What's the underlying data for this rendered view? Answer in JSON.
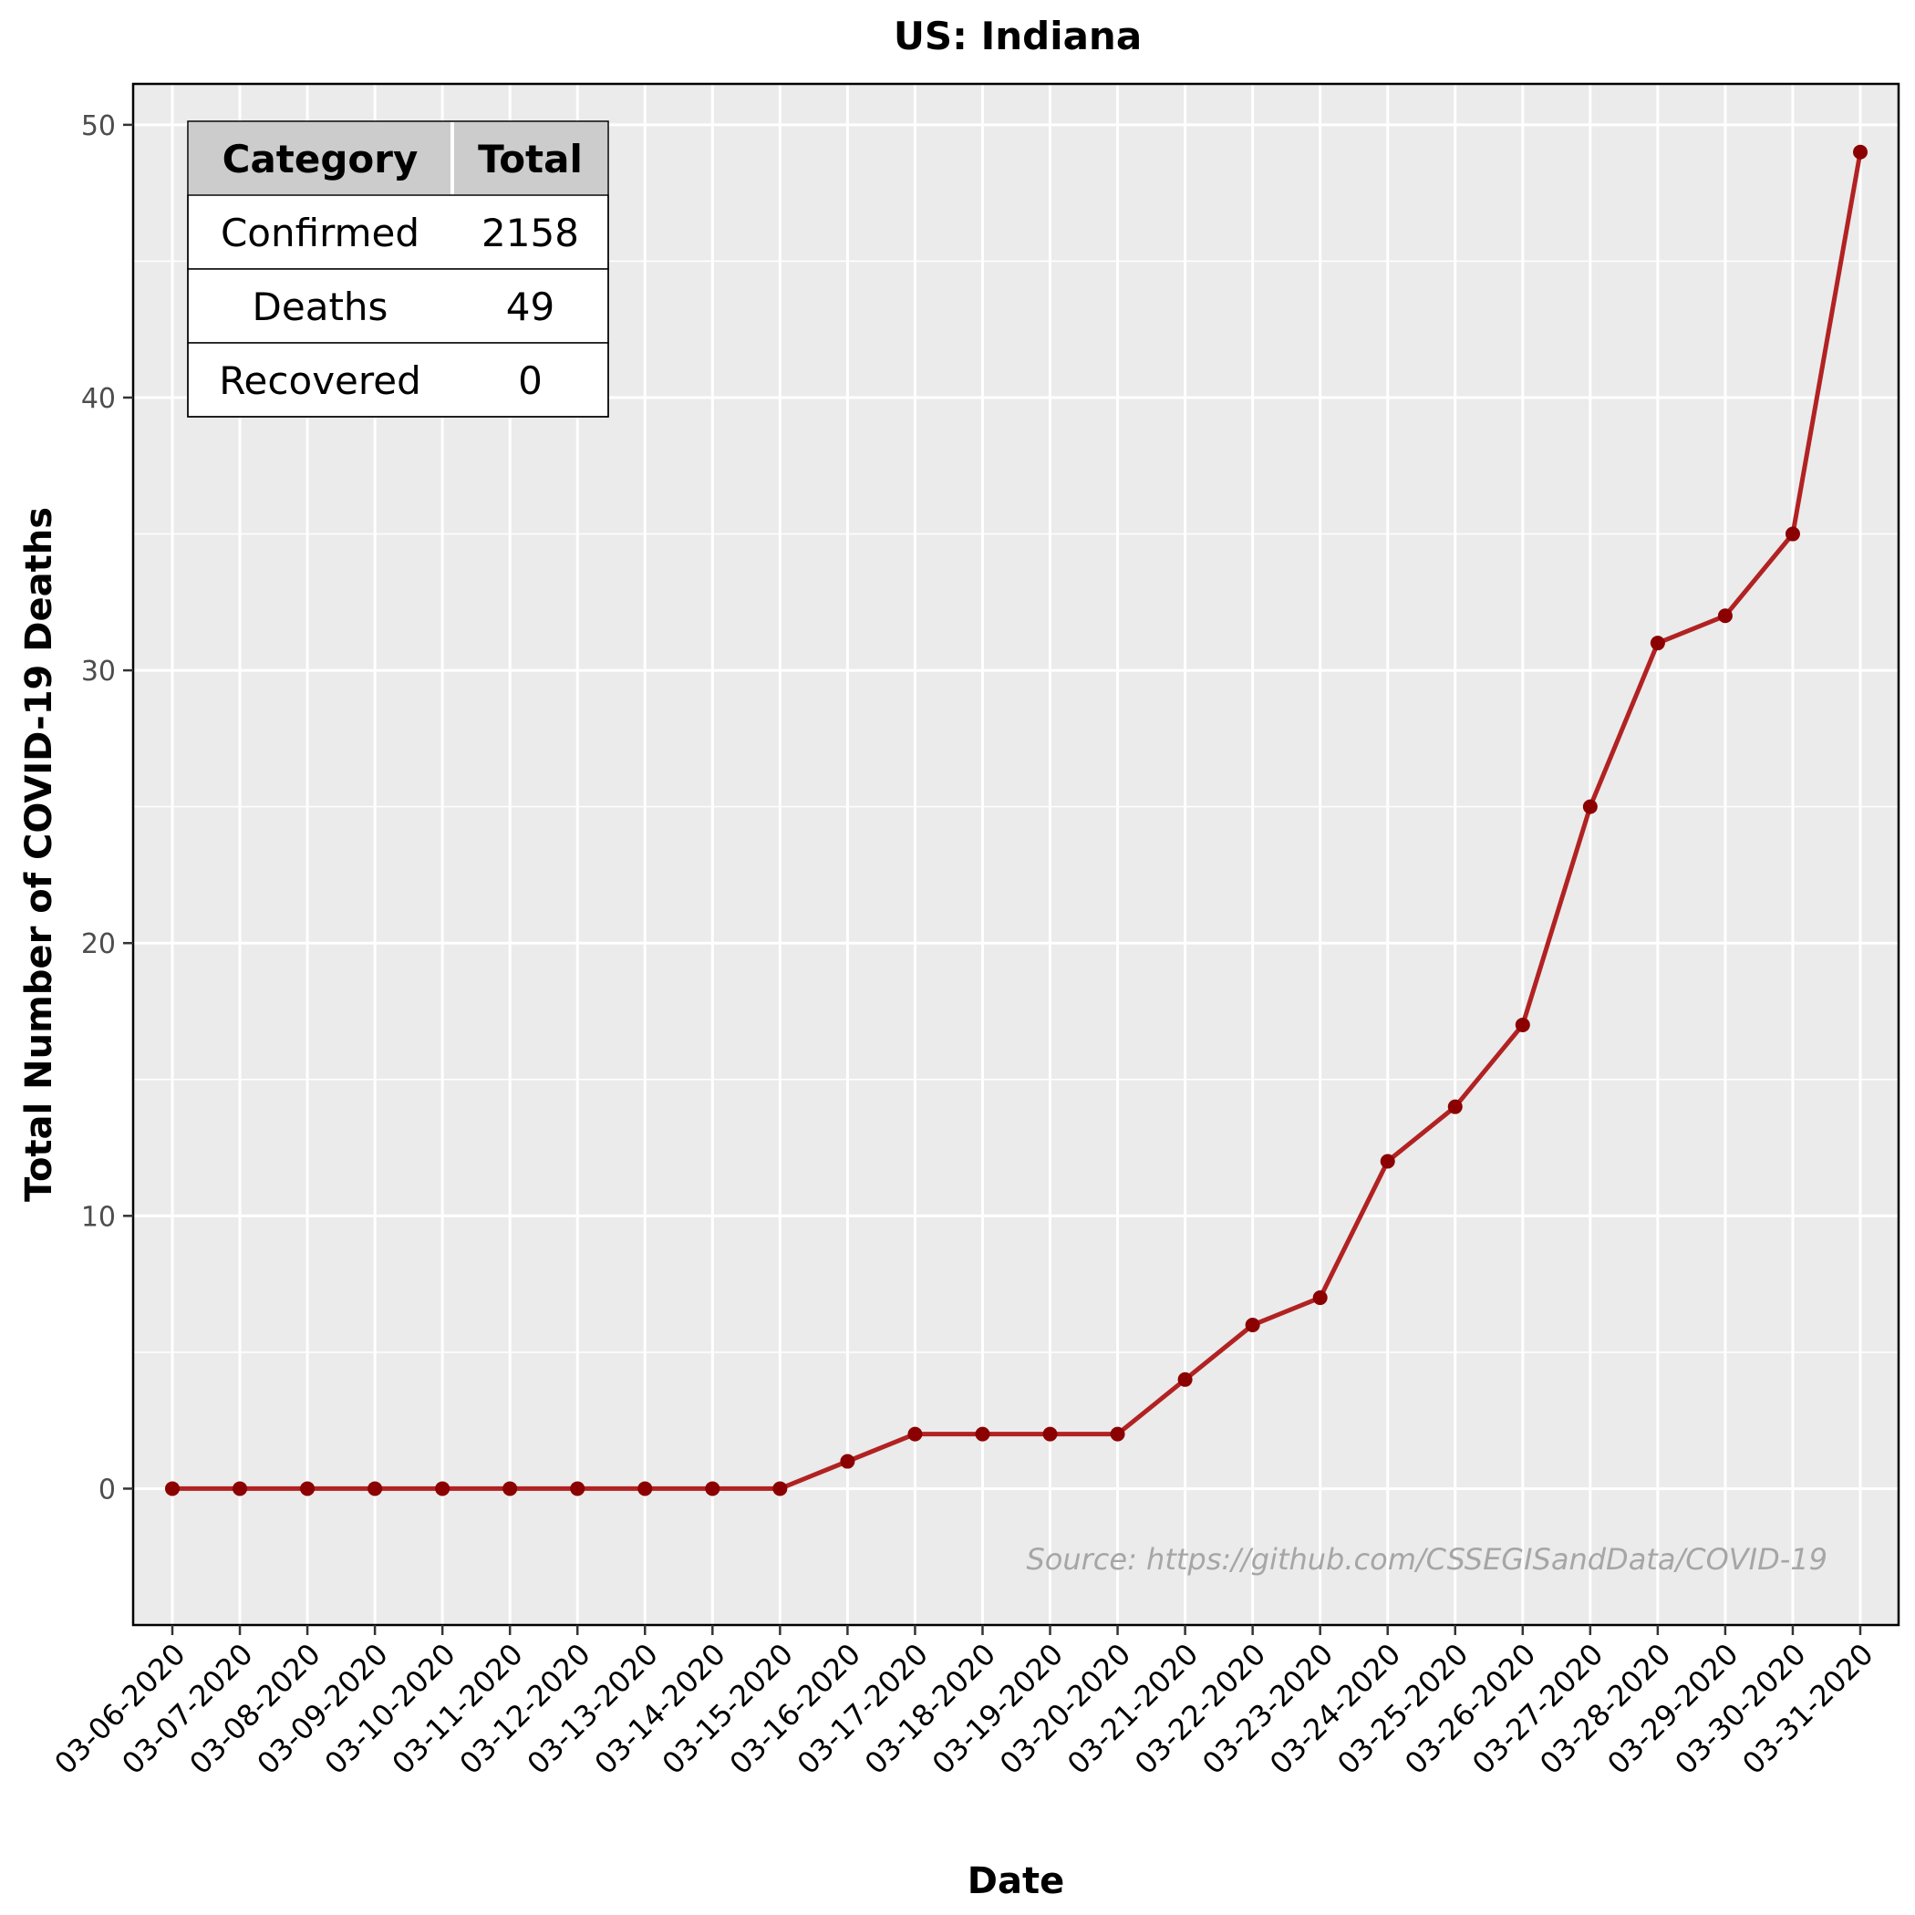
{
  "chart_data": {
    "type": "line",
    "title": "US: Indiana",
    "xlabel": "Date",
    "ylabel": "Total Number of COVID-19 Deaths",
    "x": [
      "03-06-2020",
      "03-07-2020",
      "03-08-2020",
      "03-09-2020",
      "03-10-2020",
      "03-11-2020",
      "03-12-2020",
      "03-13-2020",
      "03-14-2020",
      "03-15-2020",
      "03-16-2020",
      "03-17-2020",
      "03-18-2020",
      "03-19-2020",
      "03-20-2020",
      "03-21-2020",
      "03-22-2020",
      "03-23-2020",
      "03-24-2020",
      "03-25-2020",
      "03-26-2020",
      "03-27-2020",
      "03-28-2020",
      "03-29-2020",
      "03-30-2020",
      "03-31-2020"
    ],
    "series": [
      {
        "values": [
          0,
          0,
          0,
          0,
          0,
          0,
          0,
          0,
          0,
          0,
          1,
          2,
          2,
          2,
          2,
          4,
          6,
          7,
          12,
          14,
          17,
          25,
          31,
          32,
          35,
          49
        ],
        "color": "#b22222"
      }
    ],
    "ylim": [
      -5,
      51.5
    ],
    "yticks": [
      0,
      10,
      20,
      30,
      40,
      50
    ],
    "grid": true,
    "panel_background": "#ebebeb",
    "marker_color": "#8b0000",
    "annotation": "Source: https://github.com/CSSEGISandData/COVID-19",
    "summary_table": {
      "headers": [
        "Category",
        "Total"
      ],
      "rows": [
        [
          "Confirmed",
          "2158"
        ],
        [
          "Deaths",
          "49"
        ],
        [
          "Recovered",
          "0"
        ]
      ]
    }
  }
}
